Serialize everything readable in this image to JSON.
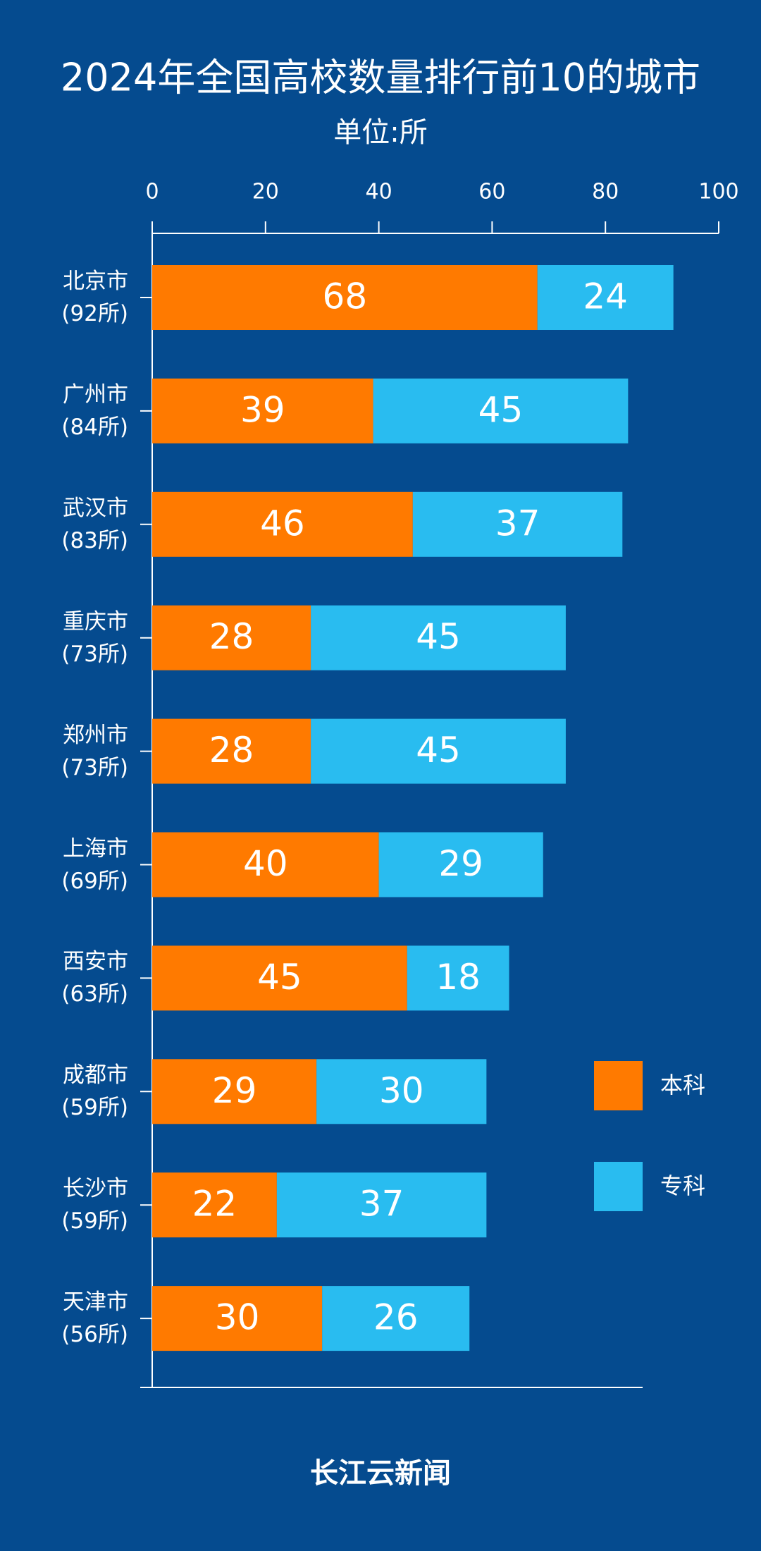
{
  "chart_data": {
    "type": "stacked_barh",
    "title": "2024年全国高校数量排行前10的城市",
    "subtitle": "单位:所",
    "categories": [
      "北京市\n(92所)",
      "广州市\n(84所)",
      "武汉市\n(83所)",
      "重庆市\n(73所)",
      "郑州市\n(73所)",
      "上海市\n(69所)",
      "西安市\n(63所)",
      "成都市\n(59所)",
      "长沙市\n(59所)",
      "天津市\n(56所)"
    ],
    "series": [
      {
        "name": "本科",
        "color": "#ff7a00",
        "values": [
          68,
          39,
          46,
          28,
          28,
          40,
          45,
          29,
          22,
          30
        ]
      },
      {
        "name": "专科",
        "color": "#29bcf0",
        "values": [
          24,
          45,
          37,
          45,
          45,
          29,
          18,
          30,
          37,
          26
        ]
      }
    ],
    "xlim": [
      0,
      100
    ],
    "xticks": [
      0,
      20,
      40,
      60,
      80,
      100
    ],
    "legend": "right",
    "footer_logo": "长江云新闻"
  }
}
